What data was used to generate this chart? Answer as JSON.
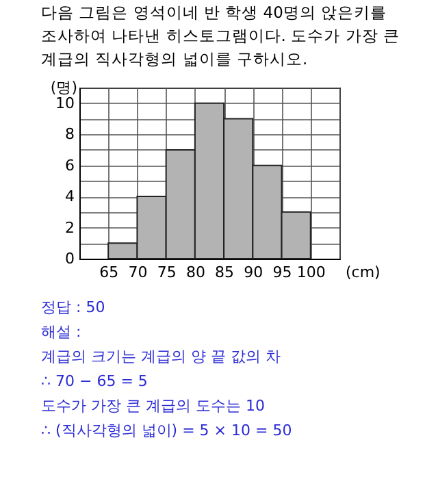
{
  "chart_data": {
    "type": "histogram",
    "title": "다음 그림은 영석이네 반 학생 40명의 앉은키를 조사하여 나타낸 히스토그램이다. 도수가 가장 큰 계급의 직사각형의 넓이를 구하시오.",
    "xlabel": "(cm)",
    "ylabel": "(명)",
    "bins": [
      65,
      70,
      75,
      80,
      85,
      90,
      95,
      100
    ],
    "values": [
      1,
      4,
      7,
      10,
      9,
      6,
      3
    ],
    "color": "#b3b3b3",
    "xlim": [
      60,
      105
    ],
    "xticks": [
      {
        "value": 60,
        "label": null
      },
      65,
      70,
      75,
      80,
      85,
      90,
      95,
      100,
      {
        "value": 105,
        "label": null
      }
    ],
    "ylim": [
      0,
      11
    ],
    "yticks": [
      0,
      {
        "value": 1,
        "label": null
      },
      2,
      {
        "value": 3,
        "label": null
      },
      4,
      {
        "value": 5,
        "label": null
      },
      6,
      {
        "value": 7,
        "label": null
      },
      8,
      {
        "value": 9,
        "label": null
      },
      10,
      {
        "value": 11,
        "label": null
      }
    ],
    "grid": true,
    "annotations": [
      "정답 : 50",
      "해설 :",
      "계급의 크기는 계급의 양 끝 값의 차",
      "∴ 70 − 65 = 5",
      "도수가 가장 큰 계급의 도수는 10",
      "∴ (직사각형의 넓이) = 5 × 10 = 50"
    ]
  }
}
